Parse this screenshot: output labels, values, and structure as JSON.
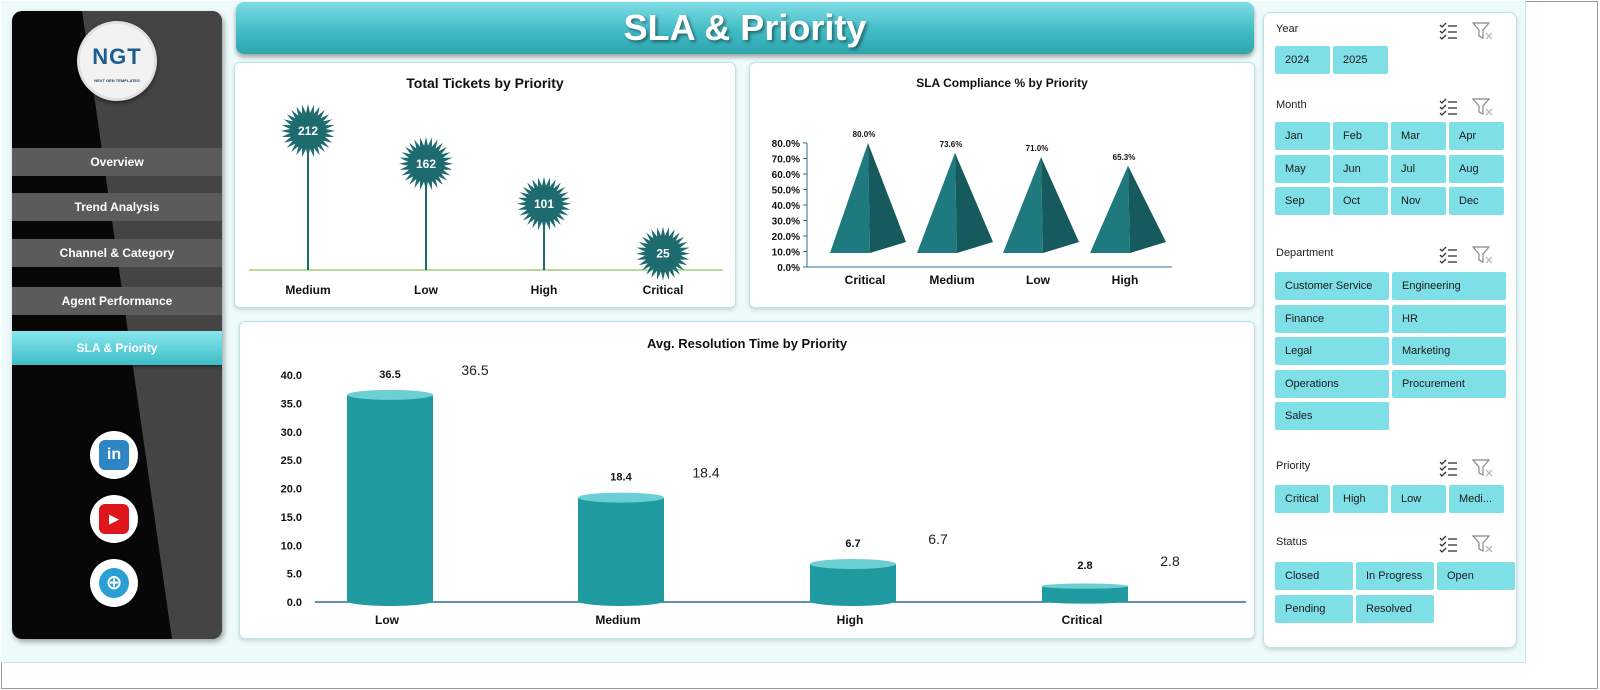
{
  "sidebar": {
    "logo_text": "NGT",
    "logo_subtext": "NEXT GEN TEMPLATES",
    "nav": [
      {
        "label": "Overview",
        "active": false
      },
      {
        "label": "Trend Analysis",
        "active": false
      },
      {
        "label": "Channel & Category",
        "active": false
      },
      {
        "label": "Agent Performance",
        "active": false
      },
      {
        "label": "SLA & Priority",
        "active": true
      }
    ],
    "social": [
      {
        "icon": "linkedin-icon",
        "glyph": "in",
        "color": "#2d86c3"
      },
      {
        "icon": "youtube-icon",
        "glyph": "▶",
        "color": "#e0161d"
      },
      {
        "icon": "globe-icon",
        "glyph": "⊕",
        "color": "#2a9fd6"
      }
    ]
  },
  "header": {
    "title": "SLA & Priority"
  },
  "colors": {
    "teal_dark": "#1e6b6f",
    "teal_mid": "#1f9aa0",
    "accent": "#3cbdc7",
    "chip": "#7fdfe6"
  },
  "chart_data": [
    {
      "type": "lollipop",
      "title": "Total Tickets by Priority",
      "categories": [
        "Medium",
        "Low",
        "High",
        "Critical"
      ],
      "values": [
        212,
        162,
        101,
        25
      ]
    },
    {
      "type": "bar",
      "title": "SLA Compliance % by Priority",
      "categories": [
        "Critical",
        "Medium",
        "Low",
        "High"
      ],
      "values": [
        80.0,
        73.6,
        71.0,
        65.3
      ],
      "value_labels": [
        "80.0%",
        "73.6%",
        "71.0%",
        "65.3%"
      ],
      "ylim": [
        0,
        80
      ],
      "yticks": [
        "0.0%",
        "10.0%",
        "20.0%",
        "30.0%",
        "40.0%",
        "50.0%",
        "60.0%",
        "70.0%",
        "80.0%"
      ],
      "yvalues": [
        0,
        10,
        20,
        30,
        40,
        50,
        60,
        70,
        80
      ]
    },
    {
      "type": "bar",
      "title": "Avg. Resolution Time by Priority",
      "categories": [
        "Low",
        "Medium",
        "High",
        "Critical"
      ],
      "values": [
        36.5,
        18.4,
        6.7,
        2.8
      ],
      "value_labels": [
        "36.5",
        "18.4",
        "6.7",
        "2.8"
      ],
      "ylim": [
        0,
        40
      ],
      "yticks": [
        "0.0",
        "5.0",
        "10.0",
        "15.0",
        "20.0",
        "25.0",
        "30.0",
        "35.0",
        "40.0"
      ],
      "yvalues": [
        0,
        5,
        10,
        15,
        20,
        25,
        30,
        35,
        40
      ]
    }
  ],
  "slicers": [
    {
      "title": "Year",
      "items": [
        "2024",
        "2025"
      ]
    },
    {
      "title": "Month",
      "items": [
        "Jan",
        "Feb",
        "Mar",
        "Apr",
        "May",
        "Jun",
        "Jul",
        "Aug",
        "Sep",
        "Oct",
        "Nov",
        "Dec"
      ]
    },
    {
      "title": "Department",
      "items": [
        "Customer Service",
        "Engineering",
        "Finance",
        "HR",
        "Legal",
        "Marketing",
        "Operations",
        "Procurement",
        "Sales"
      ]
    },
    {
      "title": "Priority",
      "items": [
        "Critical",
        "High",
        "Low",
        "Medi..."
      ]
    },
    {
      "title": "Status",
      "items": [
        "Closed",
        "In Progress",
        "Open",
        "Pending",
        "Resolved"
      ]
    }
  ]
}
